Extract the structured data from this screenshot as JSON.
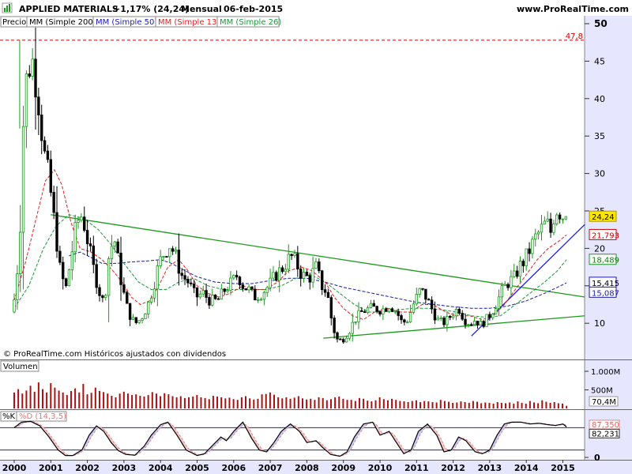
{
  "header": {
    "symbol": "APPLIED MATERIALS",
    "change": "+1,17% (24,24)",
    "period": "Mensual",
    "date": "06-feb-2015",
    "site": "www.ProRealTime.com"
  },
  "legend": {
    "price": "Precio",
    "ma200": "MM (Simple 200)",
    "ma50": "MM (Simple 50)",
    "ma13": "MM (Simple 13)",
    "ma26": "MM (Simple 26)"
  },
  "colors": {
    "panel_bg": "#e6e6ff",
    "candle_up": "#1a9a1a",
    "candle_down": "#000000",
    "ma13": "#e02020",
    "ma26": "#1a9a3a",
    "ma50": "#1a1aaa",
    "trend_green": "#1a9a1a",
    "trend_blue": "#1a1aee",
    "volume_bar": "#aa1111",
    "stoch_k": "#000000",
    "stoch_d": "#dd8888",
    "stoch_fill_up": "#c8c8f4",
    "stoch_fill_down": "#f4c8c8"
  },
  "copyright": "© ProRealTime.com  Históricos ajustados con dividendos",
  "price_panel": {
    "y_ticks": [
      "10",
      "15",
      "20",
      "25",
      "30",
      "35",
      "40",
      "45",
      "50"
    ],
    "max_label": "47,8",
    "last_price": "24,24",
    "ma13_value": "21,793",
    "ma26_value": "18,489",
    "ma50_value": "15,415",
    "ma200_value": "15,087"
  },
  "volume_panel": {
    "title": "Volumen",
    "y_ticks": [
      "1.000M",
      "500M"
    ],
    "last_value": "70,4M"
  },
  "stoch_panel": {
    "k_label": "%K",
    "d_label": "%D (14,3,5)",
    "d_value": "87,350",
    "k_value": "82,231",
    "ref_levels": [
      80,
      20
    ]
  },
  "x_axis": {
    "years": [
      "2000",
      "2001",
      "2002",
      "2003",
      "2004",
      "2005",
      "2006",
      "2007",
      "2008",
      "2009",
      "2010",
      "2011",
      "2012",
      "2013",
      "2014",
      "2015"
    ]
  },
  "chart_data": {
    "type": "candlestick",
    "period": "monthly",
    "price_range": [
      7,
      50
    ],
    "max_price": 47.8,
    "last_price": 24.24,
    "price_path": [
      [
        2000.0,
        11.5
      ],
      [
        2000.1,
        15.5
      ],
      [
        2000.2,
        22.0
      ],
      [
        2000.3,
        38.0
      ],
      [
        2000.4,
        44.0
      ],
      [
        2000.55,
        45.0
      ],
      [
        2000.7,
        40.0
      ],
      [
        2000.85,
        33.0
      ],
      [
        2001.0,
        29.0
      ],
      [
        2001.15,
        23.0
      ],
      [
        2001.3,
        17.0
      ],
      [
        2001.45,
        14.5
      ],
      [
        2001.6,
        19.0
      ],
      [
        2001.75,
        23.5
      ],
      [
        2001.9,
        24.5
      ],
      [
        2002.05,
        21.0
      ],
      [
        2002.2,
        17.5
      ],
      [
        2002.35,
        14.5
      ],
      [
        2002.5,
        12.5
      ],
      [
        2002.65,
        20.0
      ],
      [
        2002.8,
        21.0
      ],
      [
        2002.95,
        16.0
      ],
      [
        2003.1,
        12.5
      ],
      [
        2003.25,
        10.5
      ],
      [
        2003.4,
        10.0
      ],
      [
        2003.55,
        11.0
      ],
      [
        2003.7,
        12.5
      ],
      [
        2003.85,
        15.0
      ],
      [
        2004.0,
        18.0
      ],
      [
        2004.15,
        19.5
      ],
      [
        2004.3,
        20.5
      ],
      [
        2004.45,
        19.0
      ],
      [
        2004.6,
        16.5
      ],
      [
        2004.8,
        15.5
      ],
      [
        2005.0,
        13.5
      ],
      [
        2005.2,
        14.0
      ],
      [
        2005.4,
        13.0
      ],
      [
        2005.6,
        13.0
      ],
      [
        2005.8,
        14.5
      ],
      [
        2006.0,
        15.5
      ],
      [
        2006.15,
        16.5
      ],
      [
        2006.3,
        15.0
      ],
      [
        2006.45,
        14.5
      ],
      [
        2006.6,
        13.5
      ],
      [
        2006.8,
        14.0
      ],
      [
        2007.0,
        15.0
      ],
      [
        2007.2,
        16.5
      ],
      [
        2007.4,
        17.5
      ],
      [
        2007.6,
        19.0
      ],
      [
        2007.75,
        18.0
      ],
      [
        2007.9,
        16.5
      ],
      [
        2008.1,
        16.0
      ],
      [
        2008.3,
        17.5
      ],
      [
        2008.45,
        15.0
      ],
      [
        2008.6,
        14.0
      ],
      [
        2008.75,
        9.5
      ],
      [
        2008.9,
        7.5
      ],
      [
        2009.05,
        8.0
      ],
      [
        2009.2,
        9.0
      ],
      [
        2009.35,
        10.5
      ],
      [
        2009.55,
        11.5
      ],
      [
        2009.75,
        12.0
      ],
      [
        2009.9,
        12.0
      ],
      [
        2010.1,
        11.8
      ],
      [
        2010.3,
        12.5
      ],
      [
        2010.5,
        11.5
      ],
      [
        2010.65,
        10.0
      ],
      [
        2010.8,
        10.5
      ],
      [
        2010.95,
        12.5
      ],
      [
        2011.05,
        13.5
      ],
      [
        2011.15,
        14.5
      ],
      [
        2011.3,
        13.5
      ],
      [
        2011.45,
        12.0
      ],
      [
        2011.6,
        10.5
      ],
      [
        2011.75,
        10.0
      ],
      [
        2011.9,
        10.5
      ],
      [
        2012.05,
        11.5
      ],
      [
        2012.2,
        12.0
      ],
      [
        2012.35,
        10.5
      ],
      [
        2012.5,
        10.0
      ],
      [
        2012.65,
        10.5
      ],
      [
        2012.8,
        9.8
      ],
      [
        2012.95,
        10.5
      ],
      [
        2013.1,
        11.5
      ],
      [
        2013.25,
        13.0
      ],
      [
        2013.4,
        14.5
      ],
      [
        2013.55,
        15.5
      ],
      [
        2013.7,
        16.0
      ],
      [
        2013.85,
        17.5
      ],
      [
        2014.0,
        18.5
      ],
      [
        2014.15,
        20.0
      ],
      [
        2014.3,
        21.5
      ],
      [
        2014.45,
        22.5
      ],
      [
        2014.6,
        23.5
      ],
      [
        2014.7,
        22.0
      ],
      [
        2014.8,
        24.5
      ],
      [
        2014.9,
        25.5
      ],
      [
        2015.0,
        24.5
      ],
      [
        2015.1,
        24.24
      ]
    ],
    "ma13_path": [
      [
        2000.0,
        13.0
      ],
      [
        2000.3,
        18.0
      ],
      [
        2000.6,
        24.0
      ],
      [
        2000.85,
        29.0
      ],
      [
        2001.1,
        30.5
      ],
      [
        2001.3,
        28.5
      ],
      [
        2001.55,
        23.5
      ],
      [
        2001.8,
        20.0
      ],
      [
        2002.1,
        19.5
      ],
      [
        2002.4,
        18.5
      ],
      [
        2002.7,
        17.0
      ],
      [
        2002.95,
        15.5
      ],
      [
        2003.2,
        13.5
      ],
      [
        2003.45,
        12.5
      ],
      [
        2003.7,
        13.0
      ],
      [
        2003.95,
        15.0
      ],
      [
        2004.2,
        17.5
      ],
      [
        2004.5,
        18.5
      ],
      [
        2004.75,
        17.0
      ],
      [
        2005.0,
        15.0
      ],
      [
        2005.3,
        14.0
      ],
      [
        2005.6,
        13.5
      ],
      [
        2005.9,
        14.0
      ],
      [
        2006.25,
        15.0
      ],
      [
        2006.55,
        14.5
      ],
      [
        2006.85,
        14.5
      ],
      [
        2007.2,
        15.5
      ],
      [
        2007.5,
        17.0
      ],
      [
        2007.85,
        17.5
      ],
      [
        2008.15,
        17.0
      ],
      [
        2008.5,
        15.5
      ],
      [
        2008.75,
        13.5
      ],
      [
        2009.0,
        12.0
      ],
      [
        2009.25,
        11.0
      ],
      [
        2009.55,
        10.5
      ],
      [
        2009.85,
        11.5
      ],
      [
        2010.2,
        12.0
      ],
      [
        2010.55,
        11.5
      ],
      [
        2010.85,
        11.5
      ],
      [
        2011.15,
        12.5
      ],
      [
        2011.45,
        12.5
      ],
      [
        2011.8,
        11.5
      ],
      [
        2012.1,
        11.0
      ],
      [
        2012.45,
        11.0
      ],
      [
        2012.8,
        10.5
      ],
      [
        2013.1,
        11.0
      ],
      [
        2013.4,
        12.5
      ],
      [
        2013.7,
        14.5
      ],
      [
        2014.0,
        16.5
      ],
      [
        2014.3,
        18.5
      ],
      [
        2014.6,
        20.0
      ],
      [
        2014.9,
        21.0
      ],
      [
        2015.1,
        21.793
      ]
    ],
    "ma26_path": [
      [
        2000.0,
        12.0
      ],
      [
        2000.4,
        15.0
      ],
      [
        2000.8,
        20.0
      ],
      [
        2001.15,
        23.0
      ],
      [
        2001.5,
        24.5
      ],
      [
        2001.9,
        24.0
      ],
      [
        2002.3,
        22.5
      ],
      [
        2002.65,
        20.5
      ],
      [
        2003.0,
        18.0
      ],
      [
        2003.4,
        15.5
      ],
      [
        2003.75,
        14.5
      ],
      [
        2004.15,
        14.5
      ],
      [
        2004.5,
        15.5
      ],
      [
        2004.9,
        16.0
      ],
      [
        2005.3,
        15.0
      ],
      [
        2005.7,
        14.5
      ],
      [
        2006.1,
        14.5
      ],
      [
        2006.5,
        14.5
      ],
      [
        2006.9,
        14.5
      ],
      [
        2007.3,
        15.0
      ],
      [
        2007.7,
        16.0
      ],
      [
        2008.1,
        16.5
      ],
      [
        2008.5,
        15.5
      ],
      [
        2008.9,
        14.0
      ],
      [
        2009.3,
        12.5
      ],
      [
        2009.7,
        11.5
      ],
      [
        2010.1,
        11.5
      ],
      [
        2010.5,
        11.8
      ],
      [
        2010.9,
        12.0
      ],
      [
        2011.3,
        12.0
      ],
      [
        2011.7,
        11.8
      ],
      [
        2012.1,
        11.5
      ],
      [
        2012.5,
        11.0
      ],
      [
        2012.9,
        10.8
      ],
      [
        2013.3,
        11.0
      ],
      [
        2013.7,
        12.5
      ],
      [
        2014.1,
        14.0
      ],
      [
        2014.5,
        15.5
      ],
      [
        2014.85,
        17.0
      ],
      [
        2015.1,
        18.489
      ]
    ],
    "ma50_path": [
      [
        2001.5,
        19.0
      ],
      [
        2001.8,
        19.5
      ],
      [
        2002.1,
        18.8
      ],
      [
        2002.4,
        18.0
      ],
      [
        2002.8,
        18.0
      ],
      [
        2003.2,
        18.2
      ],
      [
        2003.6,
        18.3
      ],
      [
        2004.0,
        18.5
      ],
      [
        2004.3,
        18.0
      ],
      [
        2004.6,
        17.2
      ],
      [
        2005.0,
        16.2
      ],
      [
        2005.5,
        15.5
      ],
      [
        2006.0,
        15.3
      ],
      [
        2006.5,
        15.3
      ],
      [
        2007.0,
        15.7
      ],
      [
        2007.5,
        16.0
      ],
      [
        2008.0,
        16.0
      ],
      [
        2008.5,
        15.5
      ],
      [
        2009.0,
        14.8
      ],
      [
        2009.5,
        14.3
      ],
      [
        2010.0,
        13.8
      ],
      [
        2010.5,
        13.3
      ],
      [
        2011.0,
        12.8
      ],
      [
        2011.5,
        12.5
      ],
      [
        2012.0,
        12.2
      ],
      [
        2012.5,
        12.0
      ],
      [
        2013.0,
        12.0
      ],
      [
        2013.5,
        12.3
      ],
      [
        2014.0,
        13.0
      ],
      [
        2014.5,
        14.0
      ],
      [
        2014.85,
        14.8
      ],
      [
        2015.1,
        15.415
      ]
    ],
    "ma200_value": 15.087,
    "trendlines": [
      {
        "color": "green",
        "from": [
          2001.0,
          24.5
        ],
        "to": [
          2015.6,
          13.5
        ]
      },
      {
        "color": "green",
        "from": [
          2008.45,
          8.0
        ],
        "to": [
          2015.6,
          11.0
        ]
      },
      {
        "color": "blue",
        "from": [
          2012.5,
          8.3
        ],
        "to": [
          2015.6,
          23.2
        ]
      }
    ],
    "volume": {
      "unit": "M",
      "range": [
        0,
        1200
      ],
      "last": 70.4,
      "values": [
        430,
        520,
        400,
        480,
        610,
        450,
        700,
        520,
        430,
        680,
        560,
        480,
        430,
        360,
        470,
        540,
        430,
        660,
        380,
        420,
        560,
        470,
        440,
        400,
        340,
        300,
        400,
        450,
        400,
        360,
        380,
        340,
        320,
        360,
        440,
        400,
        330,
        410,
        380,
        330,
        300,
        330,
        280,
        300,
        320,
        360,
        300,
        280,
        250,
        340,
        320,
        300,
        270,
        290,
        250,
        230,
        300,
        330,
        270,
        240,
        260,
        380,
        390,
        430,
        370,
        300,
        270,
        300,
        260,
        290,
        330,
        270,
        240,
        260,
        230,
        300,
        280,
        220,
        250,
        300,
        320,
        260,
        230,
        230,
        200,
        280,
        260,
        210,
        190,
        220,
        300,
        250,
        220,
        260,
        230,
        200,
        190,
        170,
        200,
        220,
        170,
        200,
        190,
        170,
        160,
        230,
        200,
        180,
        150,
        160,
        190,
        170,
        150,
        200,
        180,
        140,
        160,
        150,
        130,
        170,
        150,
        140,
        160,
        130,
        190,
        150,
        130,
        200,
        160,
        140,
        220,
        180,
        150,
        170,
        140,
        130,
        70.4
      ]
    },
    "stochastic": {
      "range": [
        0,
        100
      ],
      "k_last": 82.231,
      "d_last": 87.35,
      "k_path": [
        [
          2000.0,
          80
        ],
        [
          2000.2,
          95
        ],
        [
          2000.45,
          97
        ],
        [
          2000.7,
          85
        ],
        [
          2000.95,
          55
        ],
        [
          2001.2,
          20
        ],
        [
          2001.4,
          5
        ],
        [
          2001.6,
          5
        ],
        [
          2001.85,
          20
        ],
        [
          2002.05,
          60
        ],
        [
          2002.25,
          85
        ],
        [
          2002.45,
          70
        ],
        [
          2002.65,
          40
        ],
        [
          2002.85,
          18
        ],
        [
          2003.05,
          8
        ],
        [
          2003.3,
          6
        ],
        [
          2003.55,
          30
        ],
        [
          2003.75,
          60
        ],
        [
          2004.0,
          88
        ],
        [
          2004.2,
          95
        ],
        [
          2004.45,
          60
        ],
        [
          2004.7,
          20
        ],
        [
          2005.0,
          5
        ],
        [
          2005.2,
          10
        ],
        [
          2005.45,
          35
        ],
        [
          2005.65,
          55
        ],
        [
          2005.8,
          45
        ],
        [
          2006.0,
          70
        ],
        [
          2006.25,
          95
        ],
        [
          2006.5,
          50
        ],
        [
          2006.7,
          20
        ],
        [
          2006.9,
          15
        ],
        [
          2007.1,
          40
        ],
        [
          2007.3,
          70
        ],
        [
          2007.55,
          90
        ],
        [
          2007.8,
          70
        ],
        [
          2008.0,
          40
        ],
        [
          2008.25,
          45
        ],
        [
          2008.45,
          25
        ],
        [
          2008.65,
          8
        ],
        [
          2008.9,
          3
        ],
        [
          2009.1,
          15
        ],
        [
          2009.3,
          55
        ],
        [
          2009.55,
          90
        ],
        [
          2009.8,
          95
        ],
        [
          2010.0,
          60
        ],
        [
          2010.25,
          70
        ],
        [
          2010.45,
          40
        ],
        [
          2010.65,
          10
        ],
        [
          2010.85,
          20
        ],
        [
          2011.05,
          70
        ],
        [
          2011.3,
          90
        ],
        [
          2011.55,
          60
        ],
        [
          2011.75,
          15
        ],
        [
          2011.95,
          20
        ],
        [
          2012.15,
          55
        ],
        [
          2012.35,
          45
        ],
        [
          2012.6,
          15
        ],
        [
          2012.8,
          10
        ],
        [
          2013.0,
          20
        ],
        [
          2013.2,
          60
        ],
        [
          2013.4,
          90
        ],
        [
          2013.6,
          95
        ],
        [
          2013.85,
          95
        ],
        [
          2014.1,
          90
        ],
        [
          2014.35,
          92
        ],
        [
          2014.6,
          88
        ],
        [
          2014.8,
          86
        ],
        [
          2015.0,
          90
        ],
        [
          2015.1,
          82.231
        ]
      ]
    }
  }
}
